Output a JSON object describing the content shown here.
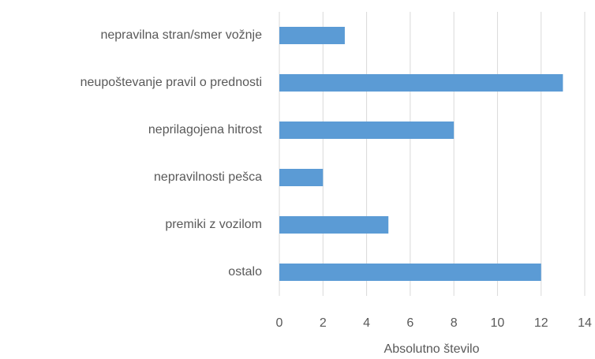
{
  "chart_data": {
    "type": "barh",
    "categories": [
      "nepravilna stran/smer vožnje",
      "neupoštevanje pravil o prednosti",
      "neprilagojena hitrost",
      "nepravilnosti pešca",
      "premiki z vozilom",
      "ostalo"
    ],
    "values": [
      3,
      13,
      8,
      2,
      5,
      12
    ],
    "color": "#5b9bd5",
    "x_label": "Absolutno število",
    "xlim": [
      0,
      14
    ],
    "xticks": [
      0,
      2,
      4,
      6,
      8,
      10,
      12,
      14
    ],
    "grid": true
  }
}
